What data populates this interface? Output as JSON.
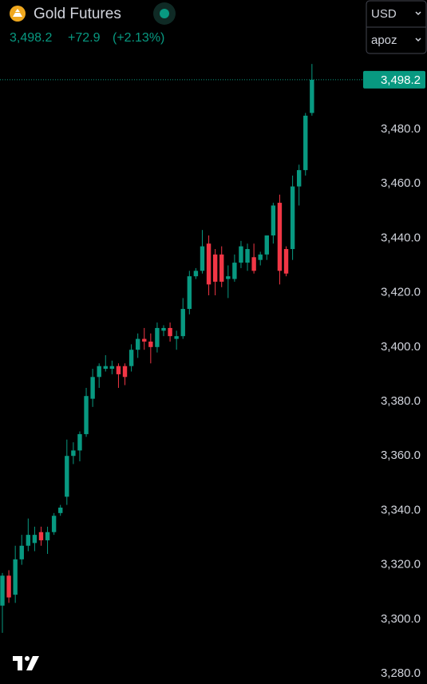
{
  "header": {
    "title": "Gold Futures",
    "price": "3,498.2",
    "change": "+72.9",
    "change_pct": "(+2.13%)",
    "currency": "USD",
    "unit": "apoz"
  },
  "chart_data": {
    "type": "candlestick",
    "series": {
      "open": [
        3305,
        3316,
        3309,
        3322,
        3327,
        3328,
        3332,
        3329,
        3332,
        3339,
        3345,
        3360,
        3362,
        3368,
        3381,
        3389,
        3392,
        3392,
        3393,
        3393,
        3393,
        3399,
        3403,
        3402,
        3400,
        3406,
        3407,
        3403,
        3404,
        3414,
        3426,
        3428,
        3438,
        3434,
        3434,
        3425,
        3425,
        3431,
        3431,
        3433,
        3432,
        3434,
        3441,
        3453,
        3436,
        3436,
        3459,
        3465,
        3486
      ],
      "high": [
        3317,
        3318,
        3327,
        3331,
        3337,
        3334,
        3334,
        3334,
        3339,
        3342,
        3366,
        3365,
        3369,
        3385,
        3392,
        3394,
        3397,
        3395,
        3394,
        3394,
        3401,
        3405,
        3407,
        3405,
        3409,
        3408,
        3409,
        3406,
        3418,
        3428,
        3429,
        3443,
        3441,
        3436,
        3437,
        3430,
        3434,
        3439,
        3438,
        3438,
        3435,
        3441,
        3453,
        3456,
        3437,
        3463,
        3467,
        3486,
        3504
      ],
      "low": [
        3295,
        3306,
        3306,
        3320,
        3325,
        3325,
        3327,
        3324,
        3331,
        3338,
        3342,
        3357,
        3358,
        3367,
        3378,
        3385,
        3391,
        3390,
        3385,
        3386,
        3391,
        3396,
        3399,
        3394,
        3398,
        3404,
        3402,
        3399,
        3403,
        3412,
        3425,
        3427,
        3419,
        3419,
        3422,
        3418,
        3424,
        3429,
        3428,
        3427,
        3430,
        3432,
        3438,
        3423,
        3426,
        3432,
        3452,
        3463,
        3485
      ],
      "close": [
        3316,
        3308,
        3322,
        3327,
        3331,
        3331,
        3329,
        3332,
        3338,
        3341,
        3360,
        3362,
        3368,
        3382,
        3389,
        3393,
        3393,
        3393,
        3390,
        3389,
        3399,
        3403,
        3402,
        3400,
        3407,
        3407,
        3404,
        3404,
        3414,
        3426,
        3428,
        3437,
        3423,
        3424,
        3424,
        3426,
        3431,
        3437,
        3436,
        3428,
        3434,
        3441,
        3452,
        3428,
        3427,
        3459,
        3465,
        3485,
        3498.2
      ]
    },
    "up_color": "#089981",
    "down_color": "#f23645",
    "ylim": [
      3276.2,
      3527.5
    ],
    "yticks": [
      {
        "value": 3280,
        "label": "3,280.0"
      },
      {
        "value": 3300,
        "label": "3,300.0"
      },
      {
        "value": 3320,
        "label": "3,320.0"
      },
      {
        "value": 3340,
        "label": "3,340.0"
      },
      {
        "value": 3360,
        "label": "3,360.0"
      },
      {
        "value": 3380,
        "label": "3,380.0"
      },
      {
        "value": 3400,
        "label": "3,400.0"
      },
      {
        "value": 3420,
        "label": "3,420.0"
      },
      {
        "value": 3440,
        "label": "3,440.0"
      },
      {
        "value": 3460,
        "label": "3,460.0"
      },
      {
        "value": 3480,
        "label": "3,480.0"
      }
    ],
    "price_line": {
      "value": 3498.2,
      "label": "3,498.2"
    }
  }
}
